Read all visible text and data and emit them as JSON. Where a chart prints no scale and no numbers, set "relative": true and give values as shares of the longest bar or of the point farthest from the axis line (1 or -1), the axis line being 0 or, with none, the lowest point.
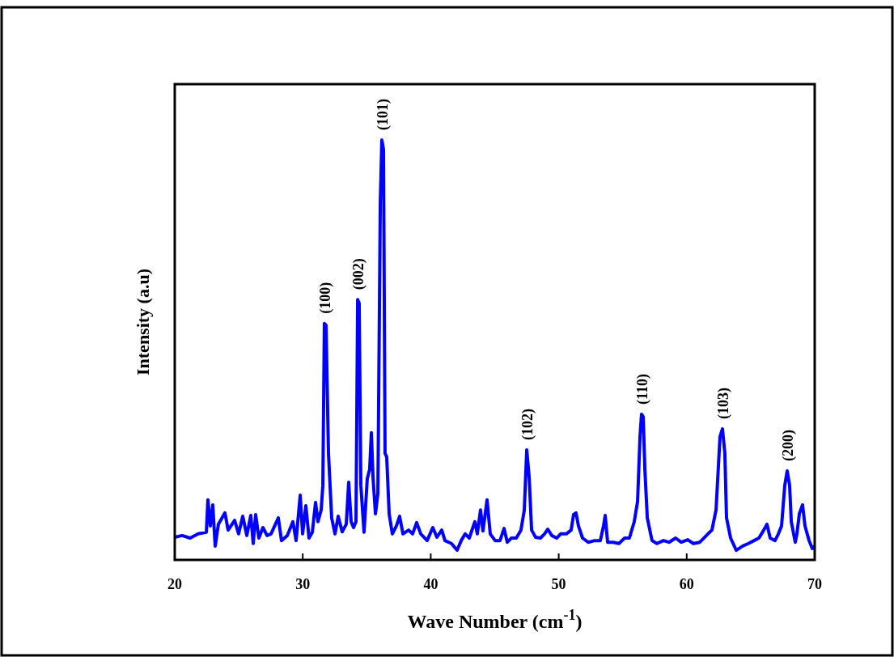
{
  "chart_data": {
    "type": "line",
    "xlabel": "Wave Number (cm$^{-1}$)",
    "ylabel": "Intensity (a.u)",
    "relative": true,
    "xlim": [
      20,
      70
    ],
    "xticks": [
      20,
      30,
      40,
      50,
      60,
      70
    ],
    "grid": false,
    "marker": "none",
    "line_style": "solid",
    "series": [
      {
        "color": "#0000ff",
        "x": [
          20,
          20.57,
          21.2,
          21.83,
          22.47,
          22.59,
          22.78,
          22.97,
          23.16,
          23.41,
          23.92,
          24.17,
          24.68,
          24.99,
          25.31,
          25.63,
          25.94,
          26.13,
          26.32,
          26.57,
          26.89,
          27.21,
          27.52,
          28.09,
          28.34,
          28.79,
          29.23,
          29.48,
          29.8,
          29.99,
          30.24,
          30.49,
          30.75,
          31,
          31.19,
          31.44,
          31.57,
          31.69,
          31.82,
          32.01,
          32.26,
          32.52,
          32.77,
          33.08,
          33.4,
          33.59,
          33.78,
          33.97,
          34.16,
          34.29,
          34.41,
          34.54,
          34.79,
          35.04,
          35.23,
          35.36,
          35.49,
          35.68,
          35.87,
          36.06,
          36.18,
          36.31,
          36.43,
          36.56,
          36.75,
          37,
          37.32,
          37.57,
          37.83,
          38.27,
          38.58,
          38.9,
          39.22,
          39.72,
          40.16,
          40.48,
          40.86,
          41.11,
          41.62,
          42.06,
          42.38,
          42.69,
          43.01,
          43.45,
          43.64,
          43.89,
          44.08,
          44.4,
          44.65,
          45.03,
          45.41,
          45.73,
          45.98,
          46.3,
          46.68,
          47.05,
          47.31,
          47.5,
          47.69,
          47.88,
          48.19,
          48.57,
          48.89,
          49.14,
          49.46,
          49.84,
          50.15,
          50.59,
          50.97,
          51.16,
          51.35,
          51.54,
          51.86,
          52.3,
          52.81,
          53.25,
          53.5,
          53.63,
          53.82,
          54.26,
          54.7,
          55.15,
          55.52,
          55.9,
          56.16,
          56.35,
          56.47,
          56.6,
          56.73,
          56.92,
          57.29,
          57.67,
          58.18,
          58.62,
          59.13,
          59.57,
          60.08,
          60.52,
          61.02,
          61.66,
          61.97,
          62.29,
          62.6,
          62.79,
          62.98,
          63.11,
          63.43,
          63.87,
          64.37,
          64.82,
          65.26,
          65.64,
          66.02,
          66.27,
          66.52,
          66.9,
          67.16,
          67.41,
          67.66,
          67.85,
          68.04,
          68.17,
          68.48,
          68.61,
          68.8,
          69.05,
          69.24,
          69.56,
          69.81,
          70
        ],
        "values": [
          0.054,
          0.058,
          0.052,
          0.062,
          0.066,
          0.143,
          0.081,
          0.131,
          0.033,
          0.085,
          0.112,
          0.071,
          0.094,
          0.062,
          0.104,
          0.058,
          0.106,
          0.039,
          0.108,
          0.052,
          0.077,
          0.058,
          0.062,
          0.1,
          0.046,
          0.058,
          0.091,
          0.046,
          0.154,
          0.062,
          0.129,
          0.052,
          0.066,
          0.137,
          0.091,
          0.119,
          0.177,
          0.563,
          0.559,
          0.254,
          0.1,
          0.062,
          0.104,
          0.067,
          0.085,
          0.185,
          0.091,
          0.077,
          0.091,
          0.62,
          0.611,
          0.177,
          0.066,
          0.193,
          0.216,
          0.303,
          0.197,
          0.11,
          0.158,
          0.852,
          1,
          0.977,
          0.254,
          0.245,
          0.11,
          0.062,
          0.081,
          0.104,
          0.062,
          0.071,
          0.062,
          0.089,
          0.062,
          0.046,
          0.077,
          0.054,
          0.071,
          0.046,
          0.039,
          0.023,
          0.046,
          0.062,
          0.052,
          0.091,
          0.062,
          0.119,
          0.069,
          0.143,
          0.062,
          0.046,
          0.046,
          0.075,
          0.042,
          0.052,
          0.052,
          0.071,
          0.119,
          0.262,
          0.197,
          0.071,
          0.054,
          0.052,
          0.062,
          0.073,
          0.058,
          0.052,
          0.062,
          0.062,
          0.071,
          0.108,
          0.112,
          0.081,
          0.052,
          0.042,
          0.046,
          0.046,
          0.081,
          0.106,
          0.042,
          0.042,
          0.039,
          0.052,
          0.052,
          0.091,
          0.139,
          0.293,
          0.347,
          0.341,
          0.216,
          0.1,
          0.046,
          0.039,
          0.046,
          0.042,
          0.052,
          0.042,
          0.048,
          0.039,
          0.042,
          0.062,
          0.071,
          0.119,
          0.293,
          0.312,
          0.254,
          0.1,
          0.052,
          0.023,
          0.033,
          0.039,
          0.046,
          0.052,
          0.071,
          0.085,
          0.052,
          0.046,
          0.062,
          0.081,
          0.177,
          0.212,
          0.177,
          0.091,
          0.042,
          0.062,
          0.11,
          0.131,
          0.081,
          0.046,
          0.027,
          0.033
        ]
      }
    ],
    "annotations": [
      {
        "text": "(100)",
        "x": 31.69,
        "y": 0.563
      },
      {
        "text": "(002)",
        "x": 34.29,
        "y": 0.62
      },
      {
        "text": "(101)",
        "x": 36.18,
        "y": 1
      },
      {
        "text": "(102)",
        "x": 47.5,
        "y": 0.262
      },
      {
        "text": "(110)",
        "x": 56.47,
        "y": 0.347
      },
      {
        "text": "(103)",
        "x": 62.79,
        "y": 0.312
      },
      {
        "text": "(200)",
        "x": 67.85,
        "y": 0.212
      }
    ]
  }
}
